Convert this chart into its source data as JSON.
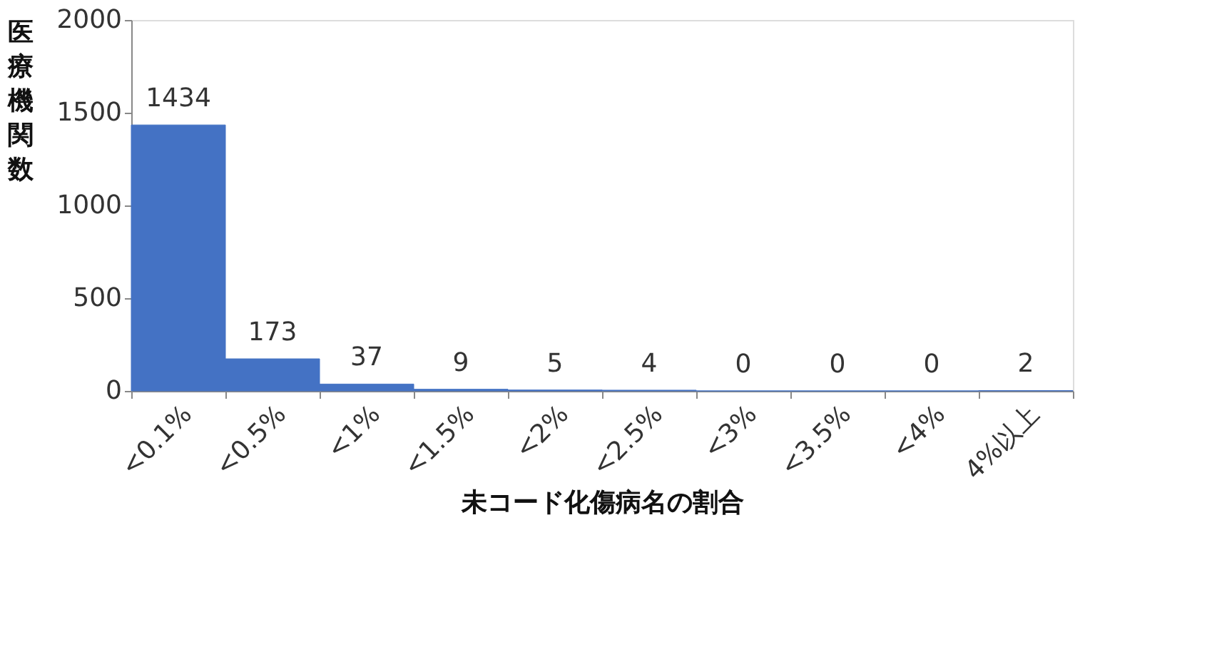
{
  "chart_data": {
    "type": "bar",
    "xlabel": "未コード化傷病名の割合",
    "ylabel": "医療機関数",
    "categories": [
      "<0.1%",
      "<0.5%",
      "<1%",
      "<1.5%",
      "<2%",
      "<2.5%",
      "<3%",
      "<3.5%",
      "<4%",
      "4%以上"
    ],
    "values": [
      1434,
      173,
      37,
      9,
      5,
      4,
      0,
      0,
      0,
      2
    ],
    "color": "#4472c4",
    "ylim": [
      0,
      2000
    ],
    "yticks": [
      0,
      500,
      1000,
      1500,
      2000
    ],
    "grid": false,
    "data_labels": true
  }
}
